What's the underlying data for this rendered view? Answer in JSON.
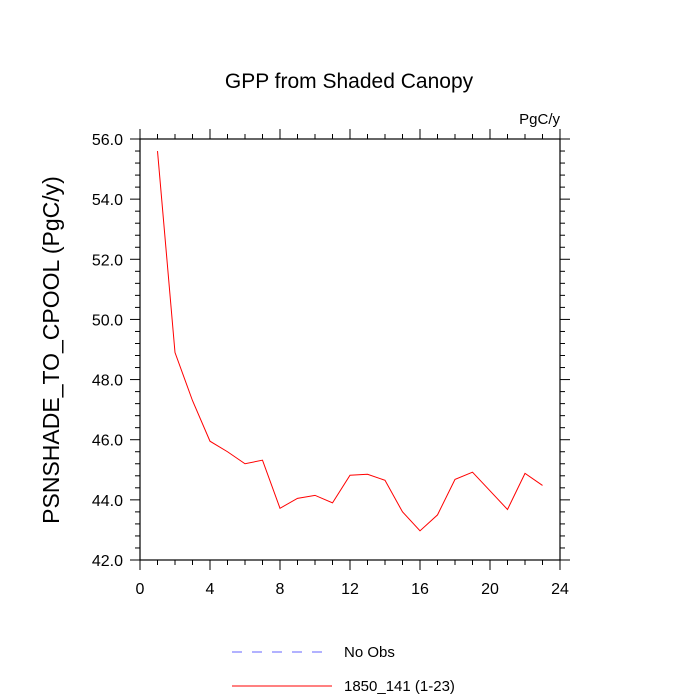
{
  "chart_data": {
    "type": "line",
    "title": "GPP from Shaded Canopy",
    "units_label": "PgC/y",
    "ylabel": "PSNSHADE_TO_CPOOL  (PgC/y)",
    "xlabel": "",
    "xlim": [
      0,
      24
    ],
    "ylim": [
      42.0,
      56.0
    ],
    "x_ticks": [
      0,
      4,
      8,
      12,
      16,
      20,
      24
    ],
    "x_tick_labels": [
      "0",
      "4",
      "8",
      "12",
      "16",
      "20",
      "24"
    ],
    "y_ticks": [
      42.0,
      44.0,
      46.0,
      48.0,
      50.0,
      52.0,
      54.0,
      56.0
    ],
    "y_tick_labels": [
      "42.0",
      "44.0",
      "46.0",
      "48.0",
      "50.0",
      "52.0",
      "54.0",
      "56.0"
    ],
    "grid": false,
    "legend_position": "bottom-center",
    "series": [
      {
        "name": "1850_141 (1-23)",
        "color": "#ff0000",
        "dash": "solid",
        "x": [
          1,
          2,
          3,
          4,
          5,
          6,
          7,
          8,
          9,
          10,
          11,
          12,
          13,
          14,
          15,
          16,
          17,
          18,
          19,
          20,
          21,
          22,
          23
        ],
        "values": [
          55.6,
          48.9,
          47.3,
          45.95,
          45.6,
          45.2,
          45.32,
          43.72,
          44.05,
          44.15,
          43.9,
          44.82,
          44.85,
          44.65,
          43.6,
          42.97,
          43.5,
          44.68,
          44.92,
          44.3,
          43.68,
          44.88,
          44.48
        ]
      }
    ],
    "legend": [
      {
        "label": "No Obs",
        "color": "#6666ff",
        "dash": "dashed"
      },
      {
        "label": "1850_141 (1-23)",
        "color": "#ff0000",
        "dash": "solid"
      }
    ]
  }
}
